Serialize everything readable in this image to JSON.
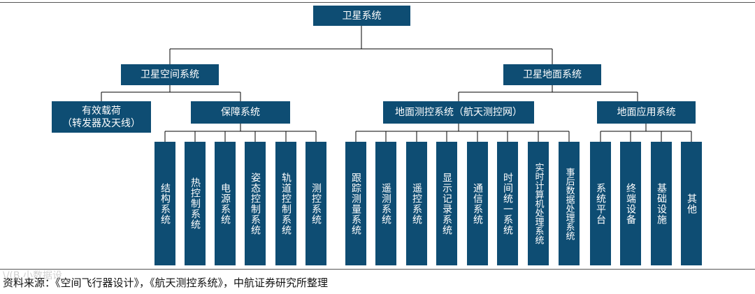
{
  "root": {
    "label": "卫星系统"
  },
  "branches": {
    "space": {
      "label": "卫星空间系统",
      "payload": {
        "line1": "有效载荷",
        "line2": "（转发器及天线）"
      },
      "support": {
        "label": "保障系统",
        "children": [
          "结构系统",
          "热控制系统",
          "电源系统",
          "姿态控制系统",
          "轨道控制系统",
          "测控系统"
        ]
      }
    },
    "ground": {
      "label": "卫星地面系统",
      "ttc": {
        "label": "地面测控系统（航天测控网）",
        "children": [
          "跟踪测量系统",
          "遥测系统",
          "遥控系统",
          "显示记录系统",
          "通信系统",
          "时间统一系统",
          "实时计算机处理系统",
          "事后数据处理系统"
        ]
      },
      "app": {
        "label": "地面应用系统",
        "children": [
          "系统平台",
          "终端设备",
          "基础设施",
          "其他"
        ]
      }
    }
  },
  "source": "资料来源：《空间飞行器设计》，《航天测控系统》，中航证券研究所整理",
  "watermark": "\\/(B 小数据设",
  "colors": {
    "box": "#0e4d73",
    "line": "#000000"
  }
}
